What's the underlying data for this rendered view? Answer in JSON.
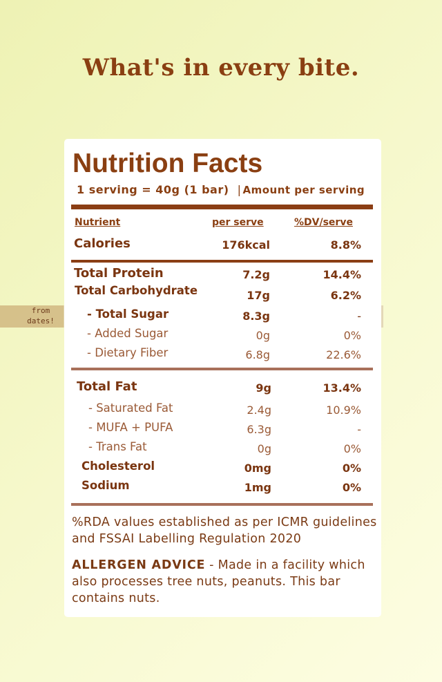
{
  "headline": "What's in every bite.",
  "panel": {
    "title": "Nutrition Facts",
    "serving_size": "1 serving = 40g (1 bar)",
    "separator": "|",
    "amount_label": "Amount per serving"
  },
  "columns": {
    "nutrient": "Nutrient",
    "per_serve": "per serve",
    "dv": "%DV/serve"
  },
  "rows": {
    "calories": {
      "name": "Calories",
      "value": "176kcal",
      "dv": "8.8%"
    },
    "protein": {
      "name": "Total Protein",
      "value": "7.2g",
      "dv": "14.4%"
    },
    "carbs": {
      "name": "Total Carbohydrate",
      "value": "17g",
      "dv": "6.2%"
    },
    "sugar": {
      "name": "- Total Sugar",
      "value": "8.3g",
      "dv": "-"
    },
    "added_sugar": {
      "name": "- Added Sugar",
      "value": "0g",
      "dv": "0%"
    },
    "fiber": {
      "name": "- Dietary Fiber",
      "value": "6.8g",
      "dv": "22.6%"
    },
    "fat": {
      "name": "Total Fat",
      "value": "9g",
      "dv": "13.4%"
    },
    "sat_fat": {
      "name": "- Saturated Fat",
      "value": "2.4g",
      "dv": "10.9%"
    },
    "mufa_pufa": {
      "name": "- MUFA + PUFA",
      "value": "6.3g",
      "dv": "-"
    },
    "trans_fat": {
      "name": "- Trans Fat",
      "value": "0g",
      "dv": "0%"
    },
    "cholesterol": {
      "name": "Cholesterol",
      "value": "0mg",
      "dv": "0%"
    },
    "sodium": {
      "name": "Sodium",
      "value": "1mg",
      "dv": "0%"
    }
  },
  "sugar_note": {
    "line1": "from",
    "line2": "dates!"
  },
  "footnote": "%RDA values established as per ICMR guidelines and FSSAI Labelling Regulation 2020",
  "allergen": {
    "label": "ALLERGEN ADVICE",
    "text": " - Made in a facility which also processes tree nuts, peanuts. This bar contains nuts."
  }
}
